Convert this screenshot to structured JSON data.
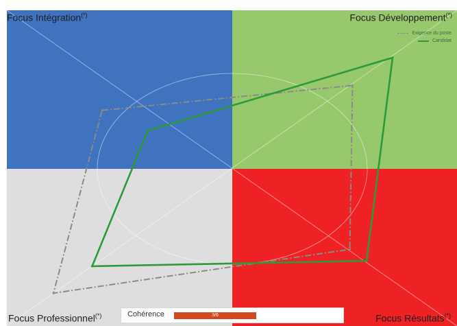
{
  "quadrants": {
    "top_left": {
      "label": "Focus Intégration",
      "mark": "(*)",
      "color": "#3f73c0"
    },
    "top_right": {
      "label": "Focus Développement",
      "mark": "(*)",
      "color": "#98c86c"
    },
    "bottom_left": {
      "label": "Focus Professionnel",
      "mark": "(*)",
      "color": "#dedede"
    },
    "bottom_right": {
      "label": "Focus Résultats",
      "mark": "(*)",
      "color": "#ee2224"
    }
  },
  "legend": {
    "position": "top-right",
    "items": [
      {
        "label": "Exigence du poste",
        "style": "dash-dot",
        "color": "#8a8a8a"
      },
      {
        "label": "Candidat",
        "style": "solid",
        "color": "#2c9a3a"
      }
    ]
  },
  "coherence": {
    "label": "Cohérence",
    "value_text": "3/6",
    "value": 3,
    "max": 6,
    "fill_color": "#d2481f"
  },
  "chart_data": {
    "type": "radar",
    "axes": [
      "Focus Intégration",
      "Focus Développement",
      "Focus Résultats",
      "Focus Professionnel"
    ],
    "range": [
      0,
      6
    ],
    "series": [
      {
        "name": "Exigence du poste",
        "values": [
          4.0,
          4.5,
          3.5,
          6.0
        ],
        "style": "dash-dot",
        "color": "#8a8a8a"
      },
      {
        "name": "Candidat",
        "values": [
          2.6,
          6.0,
          4.0,
          4.7
        ],
        "style": "solid",
        "color": "#2c9a3a"
      }
    ],
    "grid": true,
    "legend": "top-right"
  }
}
